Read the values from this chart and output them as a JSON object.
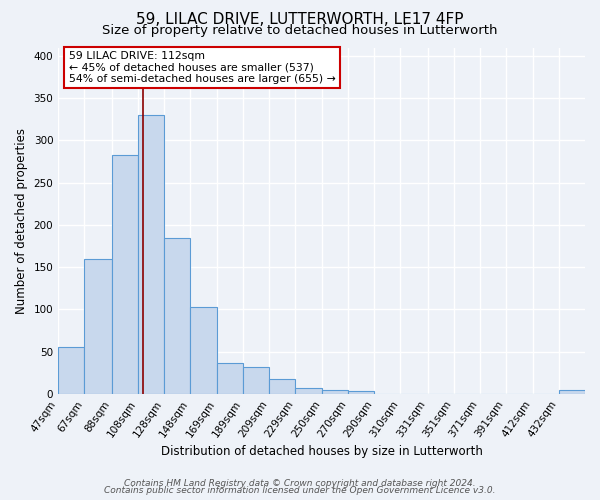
{
  "title1": "59, LILAC DRIVE, LUTTERWORTH, LE17 4FP",
  "title2": "Size of property relative to detached houses in Lutterworth",
  "xlabel": "Distribution of detached houses by size in Lutterworth",
  "ylabel": "Number of detached properties",
  "bin_edges": [
    47,
    67,
    88,
    108,
    128,
    148,
    169,
    189,
    209,
    229,
    250,
    270,
    290,
    310,
    331,
    351,
    371,
    391,
    412,
    432,
    452
  ],
  "bar_heights": [
    55,
    160,
    283,
    330,
    185,
    103,
    37,
    32,
    18,
    7,
    5,
    3,
    0,
    0,
    0,
    0,
    0,
    0,
    0,
    5
  ],
  "bar_color": "#c8d8ed",
  "bar_edge_color": "#5b9bd5",
  "vline_x": 112,
  "vline_color": "#8b0000",
  "annotation_text": "59 LILAC DRIVE: 112sqm\n← 45% of detached houses are smaller (537)\n54% of semi-detached houses are larger (655) →",
  "annotation_box_color": "#ffffff",
  "annotation_border_color": "#cc0000",
  "ylim": [
    0,
    410
  ],
  "yticks": [
    0,
    50,
    100,
    150,
    200,
    250,
    300,
    350,
    400
  ],
  "footnote1": "Contains HM Land Registry data © Crown copyright and database right 2024.",
  "footnote2": "Contains public sector information licensed under the Open Government Licence v3.0.",
  "bg_color": "#eef2f8",
  "grid_color": "#ffffff",
  "title_fontsize": 11,
  "subtitle_fontsize": 9.5,
  "axis_label_fontsize": 8.5,
  "tick_fontsize": 7.5,
  "footnote_fontsize": 6.5
}
